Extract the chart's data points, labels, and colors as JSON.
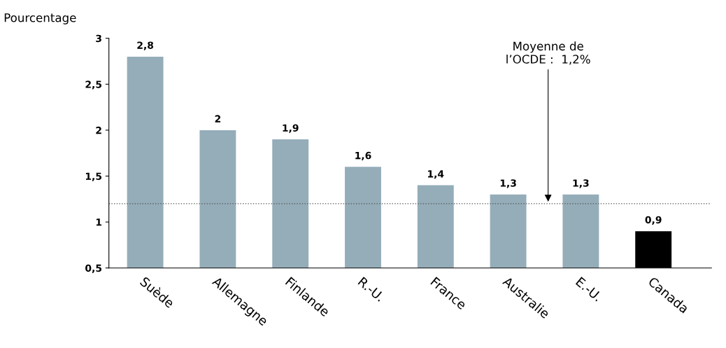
{
  "chart_data": {
    "type": "bar",
    "ylabel": "Pourcentage",
    "categories": [
      "Suède",
      "Allemagne",
      "Finlande",
      "R.-U.",
      "France",
      "Australie",
      "E.-U.",
      "Canada"
    ],
    "values": [
      2.8,
      2,
      1.9,
      1.6,
      1.4,
      1.3,
      1.3,
      0.9
    ],
    "colors": [
      "#94adb9",
      "#94adb9",
      "#94adb9",
      "#94adb9",
      "#94adb9",
      "#94adb9",
      "#94adb9",
      "#000000"
    ],
    "value_labels": [
      "2,8",
      "2",
      "1,9",
      "1,6",
      "1,4",
      "1,3",
      "1,3",
      "0,9"
    ],
    "ylim": [
      0.5,
      3
    ],
    "yticks": [
      {
        "value": 0.5,
        "label": "0,5"
      },
      1,
      {
        "value": 1.5,
        "label": "1,5"
      },
      2,
      {
        "value": 2.5,
        "label": "2,5"
      },
      3
    ],
    "ref_lines": [
      {
        "axis": "y",
        "value": 1.2,
        "label": "Moyenne de\nl’OCDE :  1,2%",
        "color": "#555555",
        "line_style": "dotted"
      }
    ],
    "grid": false,
    "legend": false
  }
}
